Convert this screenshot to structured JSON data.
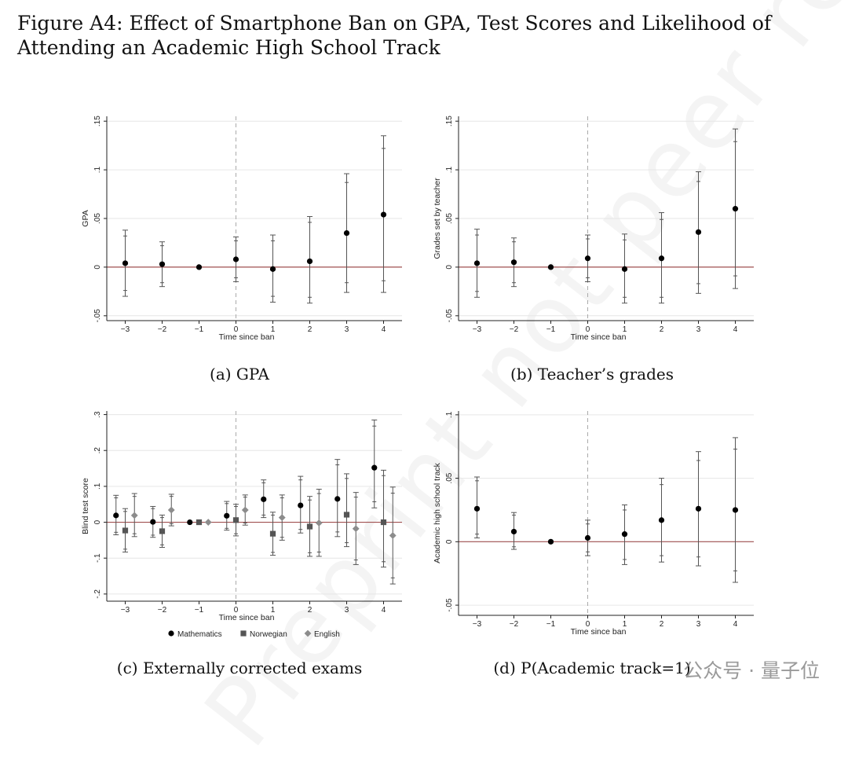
{
  "figure": {
    "title": "Figure A4: Effect of Smartphone Ban on GPA, Test Scores and Likelihood of Attending an Academic High School Track",
    "watermark": "Preprint not peer reviewed",
    "brand": "公众号 · 量子位"
  },
  "colors": {
    "marker": "#000000",
    "zero_line": "#a05050",
    "ci_line": "#555555",
    "event_line": "#aaaaaa",
    "norwegian": "#555555",
    "english": "#8c8c8c"
  },
  "chart_data": [
    {
      "type": "scatter",
      "caption": "(a) GPA",
      "xlabel": "Time since ban",
      "ylabel": "GPA",
      "x": [
        -3,
        -2,
        -1,
        0,
        1,
        2,
        3,
        4
      ],
      "xlim": [
        -3.5,
        4.5
      ],
      "ylim": [
        -0.055,
        0.155
      ],
      "yticks": [
        -0.05,
        0,
        0.05,
        0.1,
        0.15
      ],
      "ytick_labels": [
        "-.05",
        "0",
        ".05",
        ".1",
        ".15"
      ],
      "grid": true,
      "reference_x": 0,
      "series": [
        {
          "marker": "circle",
          "values": [
            0.004,
            0.003,
            0.0,
            0.008,
            -0.002,
            0.006,
            0.035,
            0.054
          ],
          "ci95": [
            [
              -0.03,
              0.038
            ],
            [
              -0.02,
              0.026
            ],
            null,
            [
              -0.015,
              0.031
            ],
            [
              -0.036,
              0.033
            ],
            [
              -0.037,
              0.052
            ],
            [
              -0.026,
              0.096
            ],
            [
              -0.026,
              0.135
            ]
          ],
          "ci90": [
            [
              -0.024,
              0.032
            ],
            [
              -0.016,
              0.022
            ],
            null,
            [
              -0.011,
              0.027
            ],
            [
              -0.03,
              0.027
            ],
            [
              -0.031,
              0.046
            ],
            [
              -0.016,
              0.087
            ],
            [
              -0.014,
              0.122
            ]
          ]
        }
      ]
    },
    {
      "type": "scatter",
      "caption": "(b) Teacher’s grades",
      "xlabel": "Time since ban",
      "ylabel": "Grades set by teacher",
      "x": [
        -3,
        -2,
        -1,
        0,
        1,
        2,
        3,
        4
      ],
      "xlim": [
        -3.5,
        4.5
      ],
      "ylim": [
        -0.055,
        0.155
      ],
      "yticks": [
        -0.05,
        0,
        0.05,
        0.1,
        0.15
      ],
      "ytick_labels": [
        "-.05",
        "0",
        ".05",
        ".1",
        ".15"
      ],
      "grid": true,
      "reference_x": 0,
      "series": [
        {
          "marker": "circle",
          "values": [
            0.004,
            0.005,
            0.0,
            0.009,
            -0.002,
            0.009,
            0.036,
            0.06
          ],
          "ci95": [
            [
              -0.031,
              0.039
            ],
            [
              -0.02,
              0.03
            ],
            null,
            [
              -0.015,
              0.033
            ],
            [
              -0.037,
              0.034
            ],
            [
              -0.037,
              0.056
            ],
            [
              -0.027,
              0.098
            ],
            [
              -0.022,
              0.142
            ]
          ],
          "ci90": [
            [
              -0.025,
              0.033
            ],
            [
              -0.016,
              0.026
            ],
            null,
            [
              -0.011,
              0.029
            ],
            [
              -0.031,
              0.028
            ],
            [
              -0.031,
              0.049
            ],
            [
              -0.017,
              0.088
            ],
            [
              -0.009,
              0.129
            ]
          ]
        }
      ]
    },
    {
      "type": "scatter",
      "caption": "(c) Externally corrected exams",
      "xlabel": "Time since ban",
      "ylabel": "Blind test score",
      "x": [
        -3,
        -2,
        -1,
        0,
        1,
        2,
        3,
        4
      ],
      "xlim": [
        -3.5,
        4.5
      ],
      "ylim": [
        -0.22,
        0.31
      ],
      "yticks": [
        -0.2,
        -0.1,
        0,
        0.1,
        0.2,
        0.3
      ],
      "ytick_labels": [
        "-.2",
        "-.1",
        "0",
        ".1",
        ".2",
        ".3"
      ],
      "grid": true,
      "reference_x": 0,
      "legend_position": "bottom",
      "series": [
        {
          "name": "Mathematics",
          "marker": "circle",
          "offset": -0.25,
          "values": [
            0.019,
            0.001,
            0.0,
            0.018,
            0.064,
            0.047,
            0.065,
            0.152
          ],
          "ci95": [
            [
              -0.035,
              0.075
            ],
            [
              -0.042,
              0.044
            ],
            null,
            [
              -0.022,
              0.058
            ],
            [
              0.013,
              0.118
            ],
            [
              -0.03,
              0.128
            ],
            [
              -0.04,
              0.175
            ],
            [
              0.04,
              0.285
            ]
          ],
          "ci90": [
            [
              -0.028,
              0.068
            ],
            [
              -0.036,
              0.038
            ],
            null,
            [
              -0.017,
              0.052
            ],
            [
              0.02,
              0.11
            ],
            [
              -0.02,
              0.118
            ],
            [
              -0.027,
              0.16
            ],
            [
              0.057,
              0.268
            ]
          ]
        },
        {
          "name": "Norwegian",
          "marker": "square",
          "offset": 0,
          "values": [
            -0.023,
            -0.025,
            0.0,
            0.006,
            -0.032,
            -0.012,
            0.021,
            0.0
          ],
          "ci95": [
            [
              -0.083,
              0.038
            ],
            [
              -0.07,
              0.02
            ],
            null,
            [
              -0.038,
              0.05
            ],
            [
              -0.092,
              0.028
            ],
            [
              -0.095,
              0.072
            ],
            [
              -0.068,
              0.135
            ],
            [
              -0.125,
              0.145
            ]
          ],
          "ci90": [
            [
              -0.075,
              0.03
            ],
            [
              -0.063,
              0.013
            ],
            null,
            [
              -0.032,
              0.044
            ],
            [
              -0.084,
              0.02
            ],
            [
              -0.085,
              0.062
            ],
            [
              -0.057,
              0.122
            ],
            [
              -0.11,
              0.13
            ]
          ]
        },
        {
          "name": "English",
          "marker": "diamond",
          "offset": 0.25,
          "values": [
            0.019,
            0.034,
            0.0,
            0.034,
            0.013,
            -0.002,
            -0.018,
            -0.037
          ],
          "ci95": [
            [
              -0.04,
              0.08
            ],
            [
              -0.01,
              0.078
            ],
            null,
            [
              -0.008,
              0.076
            ],
            [
              -0.05,
              0.076
            ],
            [
              -0.095,
              0.092
            ],
            [
              -0.118,
              0.083
            ],
            [
              -0.172,
              0.098
            ]
          ],
          "ci90": [
            [
              -0.032,
              0.072
            ],
            [
              -0.004,
              0.072
            ],
            null,
            [
              -0.002,
              0.07
            ],
            [
              -0.042,
              0.068
            ],
            [
              -0.083,
              0.08
            ],
            [
              -0.105,
              0.07
            ],
            [
              -0.155,
              0.081
            ]
          ]
        }
      ]
    },
    {
      "type": "scatter",
      "caption": "(d) P(Academic track=1)",
      "xlabel": "Time since ban",
      "ylabel": "Academic high school track",
      "x": [
        -3,
        -2,
        -1,
        0,
        1,
        2,
        3,
        4
      ],
      "xlim": [
        -3.5,
        4.5
      ],
      "ylim": [
        -0.058,
        0.103
      ],
      "yticks": [
        -0.05,
        0,
        0.05,
        0.1
      ],
      "ytick_labels": [
        "-.05",
        "0",
        ".05",
        ".1"
      ],
      "grid": true,
      "reference_x": 0,
      "series": [
        {
          "marker": "circle",
          "values": [
            0.026,
            0.008,
            0.0,
            0.003,
            0.006,
            0.017,
            0.026,
            0.025
          ],
          "ci95": [
            [
              0.003,
              0.051
            ],
            [
              -0.006,
              0.023
            ],
            null,
            [
              -0.011,
              0.017
            ],
            [
              -0.018,
              0.029
            ],
            [
              -0.016,
              0.05
            ],
            [
              -0.019,
              0.071
            ],
            [
              -0.032,
              0.082
            ]
          ],
          "ci90": [
            [
              0.006,
              0.048
            ],
            [
              -0.004,
              0.021
            ],
            null,
            [
              -0.008,
              0.014
            ],
            [
              -0.014,
              0.025
            ],
            [
              -0.011,
              0.045
            ],
            [
              -0.012,
              0.064
            ],
            [
              -0.023,
              0.073
            ]
          ]
        }
      ]
    }
  ]
}
